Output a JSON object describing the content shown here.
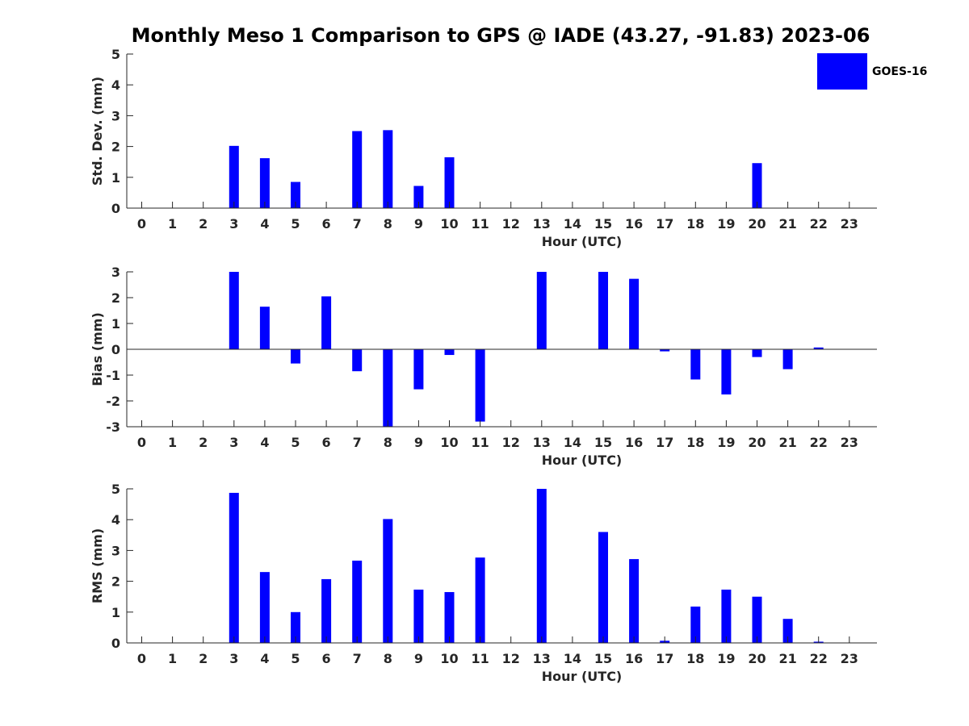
{
  "title": "Monthly Meso 1 Comparison to GPS @ IADE (43.27, -91.83) 2023-06",
  "legend": {
    "label": "GOES-16",
    "color": "#0000ff"
  },
  "chart_data": [
    {
      "type": "bar",
      "ylabel": "Std. Dev. (mm)",
      "xlabel": "Hour (UTC)",
      "ylim": [
        0,
        5
      ],
      "yticks": [
        0,
        1,
        2,
        3,
        4,
        5
      ],
      "categories": [
        "0",
        "1",
        "2",
        "3",
        "4",
        "5",
        "6",
        "7",
        "8",
        "9",
        "10",
        "11",
        "12",
        "13",
        "14",
        "15",
        "16",
        "17",
        "18",
        "19",
        "20",
        "21",
        "22",
        "23"
      ],
      "series": [
        {
          "name": "GOES-16",
          "values": [
            null,
            null,
            null,
            2.02,
            1.62,
            0.85,
            null,
            2.5,
            2.53,
            0.72,
            1.65,
            null,
            null,
            null,
            null,
            null,
            null,
            null,
            null,
            null,
            1.46,
            null,
            null,
            null
          ]
        }
      ]
    },
    {
      "type": "bar",
      "ylabel": "Bias (mm)",
      "xlabel": "Hour (UTC)",
      "ylim": [
        -3,
        3
      ],
      "yticks": [
        -3,
        -2,
        -1,
        0,
        1,
        2,
        3
      ],
      "categories": [
        "0",
        "1",
        "2",
        "3",
        "4",
        "5",
        "6",
        "7",
        "8",
        "9",
        "10",
        "11",
        "12",
        "13",
        "14",
        "15",
        "16",
        "17",
        "18",
        "19",
        "20",
        "21",
        "22",
        "23"
      ],
      "series": [
        {
          "name": "GOES-16",
          "values": [
            null,
            null,
            null,
            3.0,
            1.65,
            -0.55,
            2.05,
            -0.85,
            -3.0,
            -1.55,
            -0.22,
            -2.8,
            null,
            3.0,
            null,
            3.0,
            2.73,
            -0.08,
            -1.17,
            -1.75,
            -0.3,
            -0.77,
            0.07,
            null
          ]
        }
      ]
    },
    {
      "type": "bar",
      "ylabel": "RMS (mm)",
      "xlabel": "Hour (UTC)",
      "ylim": [
        0,
        5
      ],
      "yticks": [
        0,
        1,
        2,
        3,
        4,
        5
      ],
      "categories": [
        "0",
        "1",
        "2",
        "3",
        "4",
        "5",
        "6",
        "7",
        "8",
        "9",
        "10",
        "11",
        "12",
        "13",
        "14",
        "15",
        "16",
        "17",
        "18",
        "19",
        "20",
        "21",
        "22",
        "23"
      ],
      "series": [
        {
          "name": "GOES-16",
          "values": [
            null,
            null,
            null,
            4.87,
            2.3,
            1.0,
            2.07,
            2.67,
            4.02,
            1.73,
            1.65,
            2.77,
            null,
            5.0,
            null,
            3.6,
            2.72,
            0.07,
            1.18,
            1.73,
            1.5,
            0.78,
            0.04,
            null
          ]
        }
      ]
    }
  ]
}
